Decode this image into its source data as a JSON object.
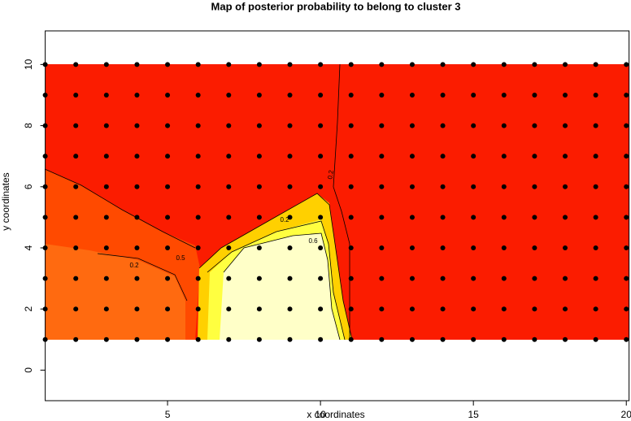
{
  "chart_data": {
    "type": "contour",
    "title": "Map of posterior probability to belong to cluster  3",
    "xlabel": "x coordinates",
    "ylabel": "y coordinates",
    "x": [
      1,
      2,
      3,
      4,
      5,
      6,
      7,
      8,
      9,
      10,
      11,
      12,
      13,
      14,
      15,
      16,
      17,
      18,
      19,
      20
    ],
    "y": [
      1,
      2,
      3,
      4,
      5,
      6,
      7,
      8,
      9,
      10
    ],
    "xlim": [
      1,
      20.1
    ],
    "ylim": [
      -1,
      11.1
    ],
    "xticks": [
      5,
      10,
      15,
      20
    ],
    "yticks": [
      0,
      2,
      4,
      6,
      8,
      10
    ],
    "contour_labels": [
      0.2,
      0.6,
      0.2,
      0.2,
      0.5
    ]
  }
}
